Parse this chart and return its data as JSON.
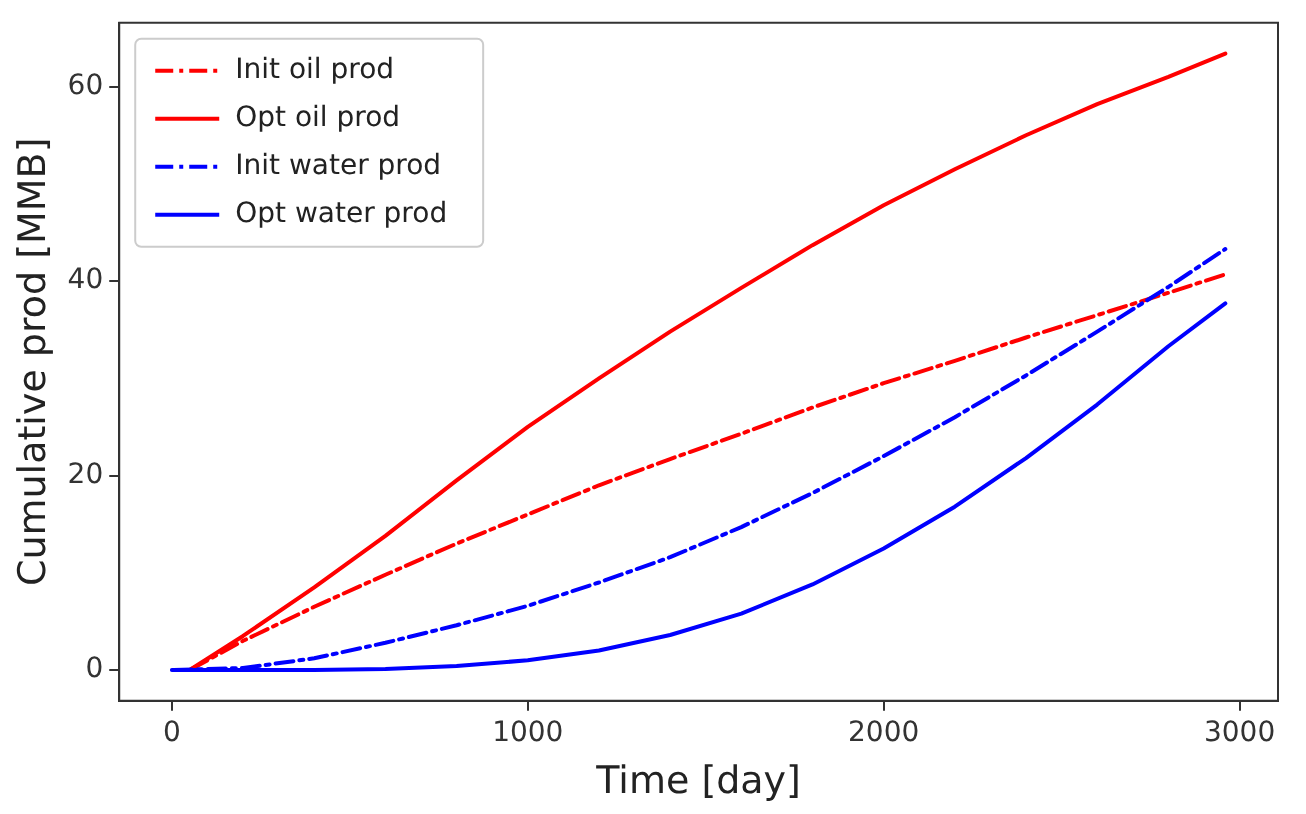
{
  "chart_data": {
    "type": "line",
    "xlabel": "Time [day]",
    "ylabel": "Cumulative prod [MMB]",
    "xlim": [
      -148,
      3108
    ],
    "ylim": [
      -3.17,
      66.57
    ],
    "xticks": [
      0,
      1000,
      2000,
      3000
    ],
    "yticks": [
      0,
      20,
      40,
      60
    ],
    "legend": "top left",
    "grid": false,
    "marker": "none",
    "series": [
      {
        "name": "Init oil prod",
        "color": "#ff0000",
        "line_style": "dashdot",
        "x": [
          50,
          200,
          400,
          600,
          800,
          1000,
          1200,
          1400,
          1600,
          1800,
          2000,
          2200,
          2400,
          2600,
          2800,
          2960
        ],
        "values": [
          0,
          3,
          6.5,
          9.8,
          13,
          16,
          19,
          21.7,
          24.3,
          27,
          29.5,
          31.8,
          34.2,
          36.5,
          38.8,
          40.7
        ]
      },
      {
        "name": "Opt oil prod",
        "color": "#ff0000",
        "line_style": "solid",
        "x": [
          50,
          200,
          400,
          600,
          800,
          1000,
          1200,
          1400,
          1600,
          1800,
          2000,
          2200,
          2400,
          2600,
          2800,
          2960
        ],
        "values": [
          0,
          3.5,
          8.5,
          13.8,
          19.5,
          25,
          30,
          34.8,
          39.3,
          43.7,
          47.8,
          51.5,
          55,
          58.2,
          61,
          63.4
        ]
      },
      {
        "name": "Init water prod",
        "color": "#0000ff",
        "line_style": "dashdot",
        "x": [
          0,
          200,
          400,
          600,
          800,
          1000,
          1200,
          1400,
          1600,
          1800,
          2000,
          2200,
          2400,
          2600,
          2800,
          2960
        ],
        "values": [
          0,
          0.2,
          1.2,
          2.8,
          4.6,
          6.6,
          9,
          11.6,
          14.7,
          18.2,
          22,
          26,
          30.3,
          34.8,
          39.4,
          43.3
        ]
      },
      {
        "name": "Opt water prod",
        "color": "#0000ff",
        "line_style": "solid",
        "x": [
          0,
          200,
          400,
          600,
          800,
          1000,
          1200,
          1400,
          1600,
          1800,
          2000,
          2200,
          2400,
          2600,
          2800,
          2960
        ],
        "values": [
          0,
          0,
          0,
          0.1,
          0.4,
          1,
          2,
          3.6,
          5.8,
          8.8,
          12.5,
          16.8,
          21.8,
          27.3,
          33.3,
          37.7
        ]
      }
    ]
  }
}
